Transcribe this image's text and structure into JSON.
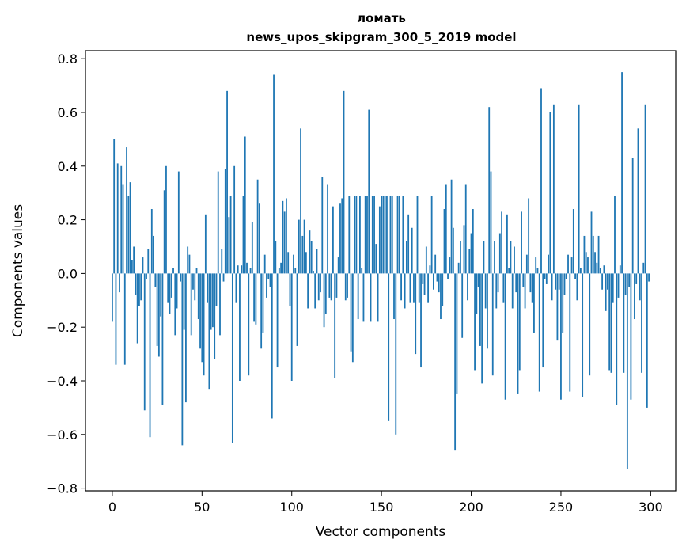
{
  "chart_data": {
    "type": "bar",
    "title": "ломать",
    "subtitle": "news_upos_skipgram_300_5_2019 model",
    "xlabel": "Vector components",
    "ylabel": "Components values",
    "xlim": [
      -14.95,
      313.95
    ],
    "ylim": [
      -0.81,
      0.83
    ],
    "x_ticks": [
      0,
      50,
      100,
      150,
      200,
      250,
      300
    ],
    "y_ticks": [
      -0.8,
      -0.6,
      -0.4,
      -0.2,
      0.0,
      0.2,
      0.4,
      0.6,
      0.8
    ],
    "x_tick_labels": [
      "0",
      "50",
      "100",
      "150",
      "200",
      "250",
      "300"
    ],
    "y_tick_labels": [
      "−0.8",
      "−0.6",
      "−0.4",
      "−0.2",
      "0.0",
      "0.2",
      "0.4",
      "0.6",
      "0.8"
    ],
    "bar_color": "#1f77b4",
    "x": [
      0,
      1,
      2,
      3,
      4,
      5,
      6,
      7,
      8,
      9,
      10,
      11,
      12,
      13,
      14,
      15,
      16,
      17,
      18,
      19,
      20,
      21,
      22,
      23,
      24,
      25,
      26,
      27,
      28,
      29,
      30,
      31,
      32,
      33,
      34,
      35,
      36,
      37,
      38,
      39,
      40,
      41,
      42,
      43,
      44,
      45,
      46,
      47,
      48,
      49,
      50,
      51,
      52,
      53,
      54,
      55,
      56,
      57,
      58,
      59,
      60,
      61,
      62,
      63,
      64,
      65,
      66,
      67,
      68,
      69,
      70,
      71,
      72,
      73,
      74,
      75,
      76,
      77,
      78,
      79,
      80,
      81,
      82,
      83,
      84,
      85,
      86,
      87,
      88,
      89,
      90,
      91,
      92,
      93,
      94,
      95,
      96,
      97,
      98,
      99,
      100,
      101,
      102,
      103,
      104,
      105,
      106,
      107,
      108,
      109,
      110,
      111,
      112,
      113,
      114,
      115,
      116,
      117,
      118,
      119,
      120,
      121,
      122,
      123,
      124,
      125,
      126,
      127,
      128,
      129,
      130,
      131,
      132,
      133,
      134,
      135,
      136,
      137,
      138,
      139,
      140,
      141,
      142,
      143,
      144,
      145,
      146,
      147,
      148,
      149,
      150,
      151,
      152,
      153,
      154,
      155,
      156,
      157,
      158,
      159,
      160,
      161,
      162,
      163,
      164,
      165,
      166,
      167,
      168,
      169,
      170,
      171,
      172,
      173,
      174,
      175,
      176,
      177,
      178,
      179,
      180,
      181,
      182,
      183,
      184,
      185,
      186,
      187,
      188,
      189,
      190,
      191,
      192,
      193,
      194,
      195,
      196,
      197,
      198,
      199,
      200,
      201,
      202,
      203,
      204,
      205,
      206,
      207,
      208,
      209,
      210,
      211,
      212,
      213,
      214,
      215,
      216,
      217,
      218,
      219,
      220,
      221,
      222,
      223,
      224,
      225,
      226,
      227,
      228,
      229,
      230,
      231,
      232,
      233,
      234,
      235,
      236,
      237,
      238,
      239,
      240,
      241,
      242,
      243,
      244,
      245,
      246,
      247,
      248,
      249,
      250,
      251,
      252,
      253,
      254,
      255,
      256,
      257,
      258,
      259,
      260,
      261,
      262,
      263,
      264,
      265,
      266,
      267,
      268,
      269,
      270,
      271,
      272,
      273,
      274,
      275,
      276,
      277,
      278,
      279,
      280,
      281,
      282,
      283,
      284,
      285,
      286,
      287,
      288,
      289,
      290,
      291,
      292,
      293,
      294,
      295,
      296,
      297,
      298,
      299
    ],
    "values": [
      -0.18,
      0.5,
      -0.34,
      0.41,
      -0.07,
      0.4,
      0.33,
      -0.34,
      0.47,
      0.29,
      0.34,
      0.05,
      0.1,
      -0.08,
      -0.26,
      -0.12,
      -0.1,
      0.06,
      -0.51,
      -0.02,
      0.09,
      -0.61,
      0.24,
      0.14,
      -0.05,
      -0.27,
      -0.31,
      -0.16,
      -0.49,
      0.31,
      0.4,
      -0.11,
      -0.15,
      -0.09,
      0.02,
      -0.23,
      -0.13,
      0.38,
      -0.03,
      -0.64,
      -0.21,
      -0.48,
      0.1,
      0.07,
      -0.23,
      -0.06,
      -0.1,
      0.02,
      -0.17,
      -0.28,
      -0.33,
      -0.38,
      0.22,
      -0.11,
      -0.43,
      -0.21,
      -0.2,
      -0.32,
      -0.12,
      0.38,
      -0.23,
      0.09,
      -0.03,
      0.39,
      0.68,
      0.21,
      0.29,
      -0.63,
      0.4,
      -0.11,
      0.03,
      -0.4,
      0.03,
      0.29,
      0.51,
      0.04,
      -0.38,
      0.02,
      0.19,
      -0.18,
      -0.19,
      0.35,
      0.26,
      -0.28,
      -0.22,
      0.07,
      -0.09,
      -0.02,
      -0.05,
      -0.54,
      0.74,
      0.12,
      -0.35,
      0.02,
      0.04,
      0.27,
      0.23,
      0.28,
      0.08,
      -0.12,
      -0.4,
      0.07,
      0.02,
      -0.27,
      0.2,
      0.54,
      0.14,
      0.2,
      0.08,
      -0.13,
      0.16,
      0.12,
      0.01,
      -0.13,
      0.09,
      -0.1,
      -0.07,
      0.36,
      -0.2,
      -0.15,
      0.33,
      -0.09,
      -0.1,
      0.25,
      -0.39,
      -0.09,
      0.06,
      0.26,
      0.28,
      0.68,
      -0.1,
      -0.09,
      0.29,
      -0.29,
      -0.33,
      0.29,
      0.29,
      -0.17,
      0.29,
      0.02,
      -0.18,
      0.29,
      0.29,
      0.61,
      -0.18,
      0.29,
      0.29,
      0.11,
      -0.18,
      0.25,
      0.29,
      0.29,
      0.29,
      0.29,
      -0.55,
      0.29,
      0.29,
      -0.17,
      -0.6,
      0.29,
      0.29,
      -0.1,
      0.29,
      -0.13,
      0.12,
      0.22,
      -0.11,
      0.17,
      -0.11,
      -0.3,
      0.29,
      -0.11,
      -0.35,
      -0.04,
      -0.08,
      0.1,
      -0.11,
      0.03,
      0.29,
      -0.06,
      0.07,
      -0.03,
      -0.07,
      -0.17,
      -0.12,
      0.24,
      0.33,
      -0.02,
      0.06,
      0.35,
      0.17,
      -0.66,
      -0.45,
      0.04,
      0.12,
      -0.24,
      0.18,
      0.33,
      -0.1,
      0.09,
      0.15,
      0.24,
      -0.36,
      -0.15,
      -0.05,
      -0.27,
      -0.41,
      0.12,
      -0.13,
      -0.28,
      0.62,
      0.38,
      -0.38,
      0.12,
      -0.13,
      -0.07,
      0.15,
      0.23,
      -0.11,
      -0.47,
      0.22,
      0.02,
      0.12,
      -0.13,
      0.1,
      -0.07,
      -0.45,
      -0.36,
      0.23,
      -0.05,
      -0.13,
      0.07,
      0.28,
      -0.07,
      -0.11,
      -0.22,
      0.06,
      0.02,
      -0.44,
      0.69,
      -0.35,
      -0.02,
      -0.04,
      0.07,
      0.6,
      -0.1,
      0.63,
      -0.06,
      -0.25,
      -0.06,
      -0.47,
      -0.22,
      -0.08,
      -0.02,
      0.07,
      -0.44,
      0.06,
      0.24,
      -0.02,
      -0.1,
      0.63,
      0.02,
      -0.46,
      0.14,
      0.08,
      0.06,
      -0.38,
      0.23,
      0.14,
      0.08,
      0.04,
      0.14,
      0.02,
      -0.06,
      0.03,
      -0.14,
      -0.06,
      -0.36,
      -0.37,
      -0.11,
      0.29,
      -0.49,
      -0.09,
      0.03,
      0.75,
      -0.37,
      -0.08,
      -0.73,
      -0.05,
      -0.47,
      0.43,
      -0.17,
      -0.04,
      0.54,
      -0.1,
      -0.37,
      0.04,
      0.63,
      -0.5,
      -0.03
    ]
  }
}
